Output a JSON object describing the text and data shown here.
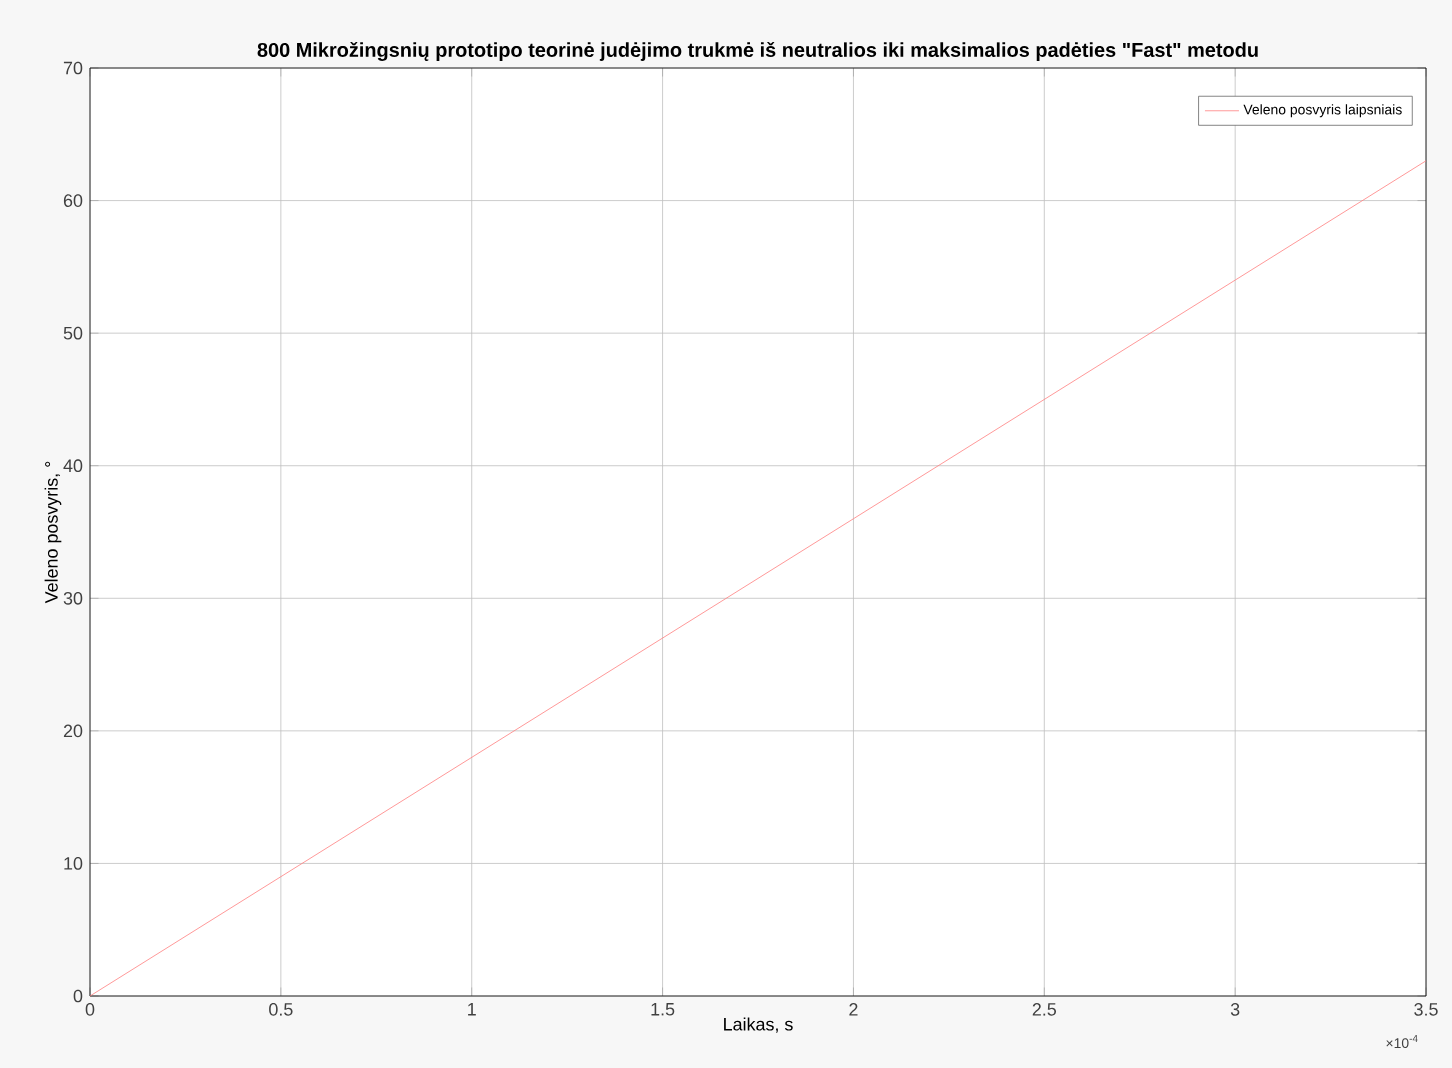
{
  "chart_data": {
    "type": "line",
    "title": "800 Mikrožingsnių prototipo teorinė judėjimo trukmė iš neutralios iki maksimalios padėties \"Fast\" metodu",
    "xlabel": "Laikas, s",
    "ylabel": "Veleno posvyris, °",
    "annotations": [
      "×10$^{-4}$"
    ],
    "series": [
      {
        "name": "Veleno posvyris laipsniais",
        "color": "#ff7f7f",
        "x": [
          0,
          1,
          2,
          3,
          3.5
        ],
        "values": [
          0,
          18,
          36,
          54,
          63
        ]
      }
    ],
    "xlim": [
      0,
      3.5
    ],
    "xticks": [
      0,
      0.5,
      1,
      1.5,
      2,
      2.5,
      3,
      3.5
    ],
    "ylim": [
      0,
      70
    ],
    "yticks": [
      0,
      10,
      20,
      30,
      40,
      50,
      60,
      70
    ],
    "grid": true,
    "legend": "top right",
    "line_style": "solid",
    "marker": "none"
  }
}
